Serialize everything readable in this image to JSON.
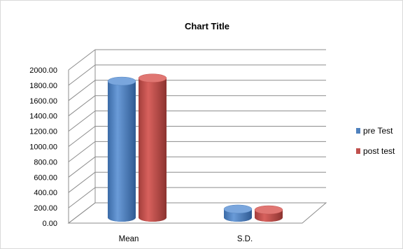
{
  "chart_data": {
    "type": "bar",
    "title": "Chart Title",
    "categories": [
      "Mean",
      "S.D."
    ],
    "series": [
      {
        "name": "pre Test",
        "values": [
          1780,
          110
        ]
      },
      {
        "name": "post test",
        "values": [
          1820,
          100
        ]
      }
    ],
    "ylim": [
      0,
      2000
    ],
    "ytick_labels": [
      "0.00",
      "200.00",
      "400.00",
      "600.00",
      "800.00",
      "1000.00",
      "1200.00",
      "1400.00",
      "1600.00",
      "1800.00",
      "2000.00"
    ],
    "grid": true,
    "legend_position": "right",
    "colors": {
      "pre Test": "#4f81bd",
      "post test": "#c0504d"
    },
    "style": "3d-cylinder"
  }
}
